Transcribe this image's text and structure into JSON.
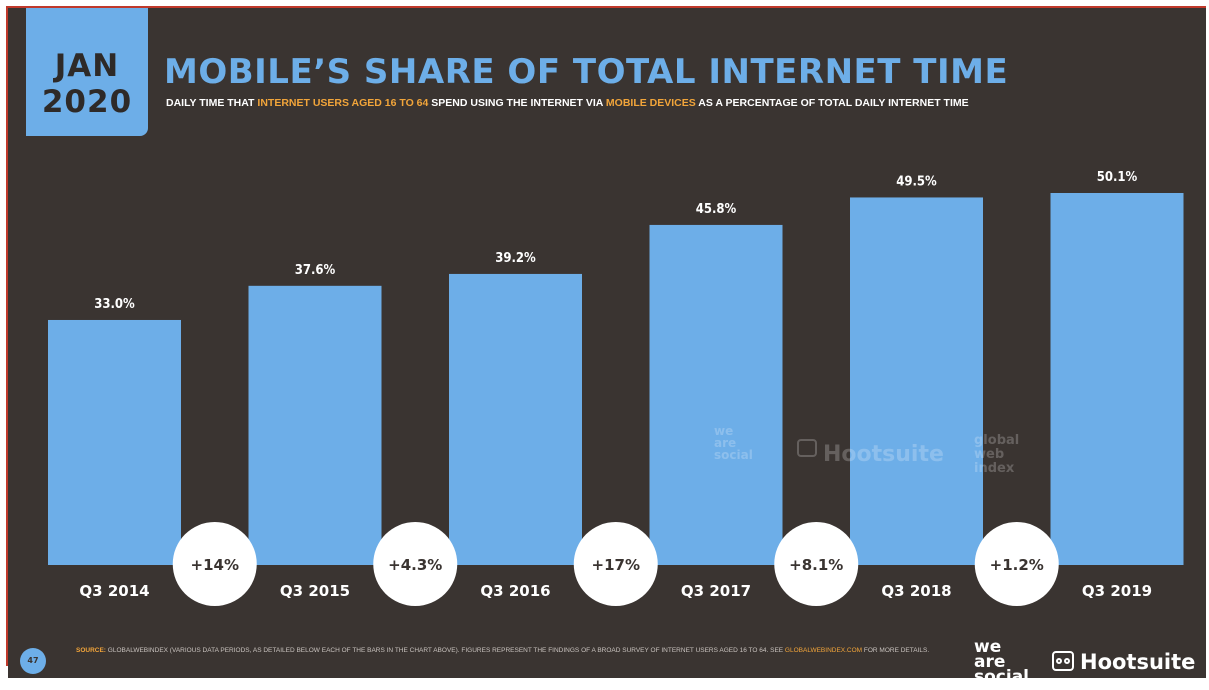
{
  "header": {
    "month": "JAN",
    "year": "2020",
    "title": "MOBILE’S SHARE OF TOTAL INTERNET TIME",
    "subtitle_parts": [
      {
        "text": "DAILY TIME THAT ",
        "hl": false
      },
      {
        "text": "INTERNET USERS AGED 16 TO 64",
        "hl": true
      },
      {
        "text": " SPEND USING THE INTERNET VIA ",
        "hl": false
      },
      {
        "text": "MOBILE DEVICES",
        "hl": true
      },
      {
        "text": " AS A PERCENTAGE OF TOTAL DAILY INTERNET TIME",
        "hl": false
      }
    ]
  },
  "chart_data": {
    "type": "bar",
    "title": "MOBILE’S SHARE OF TOTAL INTERNET TIME",
    "categories": [
      "Q3 2014",
      "Q3 2015",
      "Q3 2016",
      "Q3 2017",
      "Q3 2018",
      "Q3 2019"
    ],
    "values": [
      33.0,
      37.6,
      39.2,
      45.8,
      49.5,
      50.1
    ],
    "value_labels": [
      "33.0%",
      "37.6%",
      "39.2%",
      "45.8%",
      "49.5%",
      "50.1%"
    ],
    "change_labels": [
      "+14%",
      "+4.3%",
      "+17%",
      "+8.1%",
      "+1.2%"
    ],
    "ylim": [
      0,
      60
    ],
    "grid": false,
    "legend": "none",
    "bar_color": "#6daee8"
  },
  "watermark": {
    "brand1": [
      "we",
      "are",
      "social"
    ],
    "brand2": "Hootsuite",
    "brand3": [
      "global",
      "web",
      "index"
    ]
  },
  "footer": {
    "page_number": "47",
    "source_label": "SOURCE:",
    "source_text": " GLOBALWEBINDEX (VARIOUS DATA PERIODS, AS DETAILED BELOW EACH OF THE BARS IN THE CHART ABOVE). FIGURES REPRESENT THE FINDINGS OF A BROAD SURVEY OF INTERNET USERS AGED 16 TO 64. SEE ",
    "source_link": "GLOBALWEBINDEX.COM",
    "source_tail": " FOR MORE DETAILS.",
    "logo1": [
      "we",
      "are",
      "social"
    ],
    "logo2": "Hootsuite"
  }
}
